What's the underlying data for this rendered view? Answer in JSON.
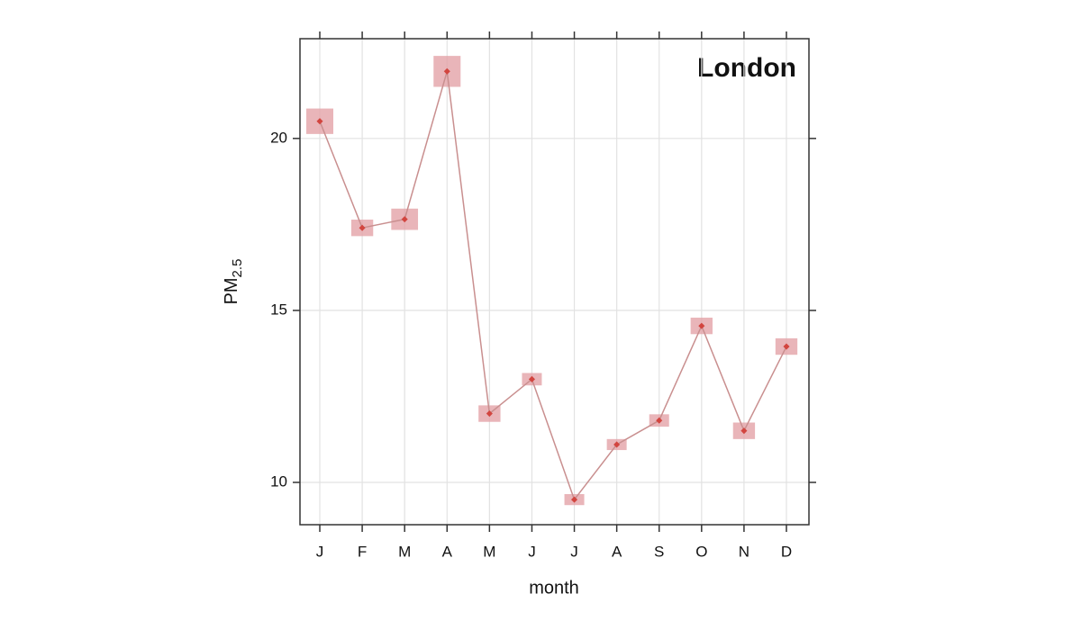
{
  "chart_data": {
    "type": "line",
    "title": "London",
    "x_label": "month",
    "y_label": {
      "main": "PM",
      "subscript": "2.5"
    },
    "categories": [
      "J",
      "F",
      "M",
      "A",
      "M",
      "J",
      "J",
      "A",
      "S",
      "O",
      "N",
      "D"
    ],
    "series": [
      {
        "color": "#c98f8f",
        "point_color": "#d2453f",
        "box_color": "#e3a2a8",
        "values": [
          20.5,
          17.4,
          17.65,
          21.95,
          12.0,
          13.0,
          9.5,
          11.1,
          11.8,
          14.55,
          11.5,
          13.95
        ],
        "errors": [
          0.37,
          0.24,
          0.31,
          0.45,
          0.24,
          0.18,
          0.16,
          0.16,
          0.18,
          0.24,
          0.24,
          0.24
        ]
      }
    ],
    "ylim": [
      8.77,
      22.9
    ],
    "yticks": [
      10,
      15,
      20
    ],
    "grid": true
  }
}
